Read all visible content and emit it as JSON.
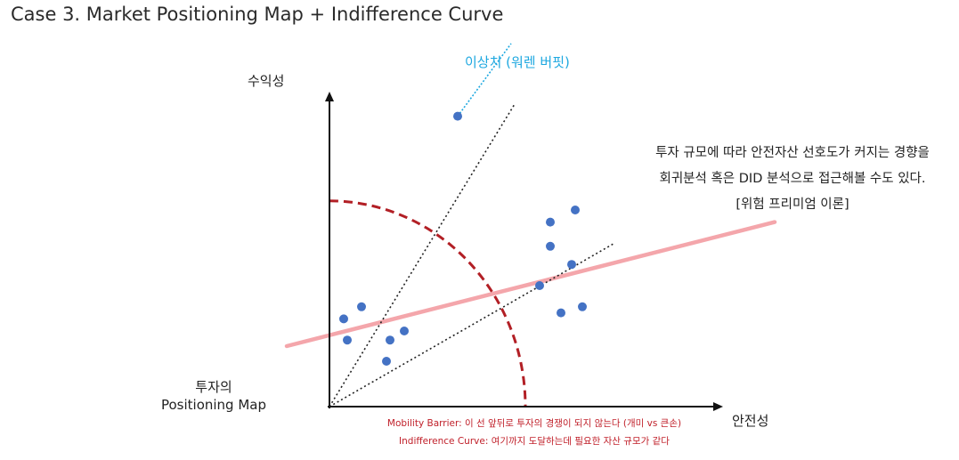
{
  "title": "Case 3. Market Positioning Map + Indifference Curve",
  "axes": {
    "y_label": "수익성",
    "x_label": "안전성"
  },
  "map_label": {
    "line1": "투자의",
    "line2": "Positioning Map"
  },
  "outlier_label": "이상치 (워렌 버핏)",
  "annotation": {
    "line1": "투자 규모에 따라 안전자산 선호도가 커지는 경향을",
    "line2": "회귀분석 혹은 DID 분석으로 접근해볼 수도 있다.",
    "line3": "[위험 프리미엄 이론]"
  },
  "notes": {
    "mobility_barrier": "Mobility Barrier: 이 선 앞뒤로 투자의 경쟁이 되지 않는다 (개미 vs 큰손)",
    "indifference_curve": "Indifference Curve: 여기까지 도달하는데 필요한 자산 규모가 같다"
  },
  "colors": {
    "points": "#4472c4",
    "curve": "#b21f25",
    "trend": "#f4a6ab",
    "outlier": "#1ea8e0",
    "notes": "#c0202a"
  },
  "chart_data": {
    "type": "scatter",
    "x_range": [
      0,
      100
    ],
    "y_range": [
      0,
      100
    ],
    "points": [
      {
        "x": 4,
        "y": 29,
        "group": "small"
      },
      {
        "x": 9,
        "y": 33,
        "group": "small"
      },
      {
        "x": 5,
        "y": 22,
        "group": "small"
      },
      {
        "x": 17,
        "y": 22,
        "group": "small"
      },
      {
        "x": 21,
        "y": 25,
        "group": "small"
      },
      {
        "x": 16,
        "y": 15,
        "group": "small"
      },
      {
        "x": 36,
        "y": 96,
        "group": "outlier"
      },
      {
        "x": 62,
        "y": 61,
        "group": "large"
      },
      {
        "x": 69,
        "y": 65,
        "group": "large"
      },
      {
        "x": 62,
        "y": 53,
        "group": "large"
      },
      {
        "x": 68,
        "y": 47,
        "group": "large"
      },
      {
        "x": 59,
        "y": 40,
        "group": "large"
      },
      {
        "x": 65,
        "y": 31,
        "group": "large"
      },
      {
        "x": 71,
        "y": 33,
        "group": "large"
      }
    ],
    "trend_line": {
      "from": [
        -12,
        20
      ],
      "to": [
        125,
        61
      ]
    },
    "ray_lines": [
      {
        "from": [
          0,
          0
        ],
        "to": [
          52,
          100
        ]
      },
      {
        "from": [
          0,
          0
        ],
        "to": [
          80,
          54
        ]
      }
    ],
    "indifference_curve": {
      "radius_x": 55,
      "radius_y": 68
    },
    "outlier_pointer": {
      "from": [
        36,
        96
      ],
      "to": [
        51,
        120
      ]
    }
  }
}
